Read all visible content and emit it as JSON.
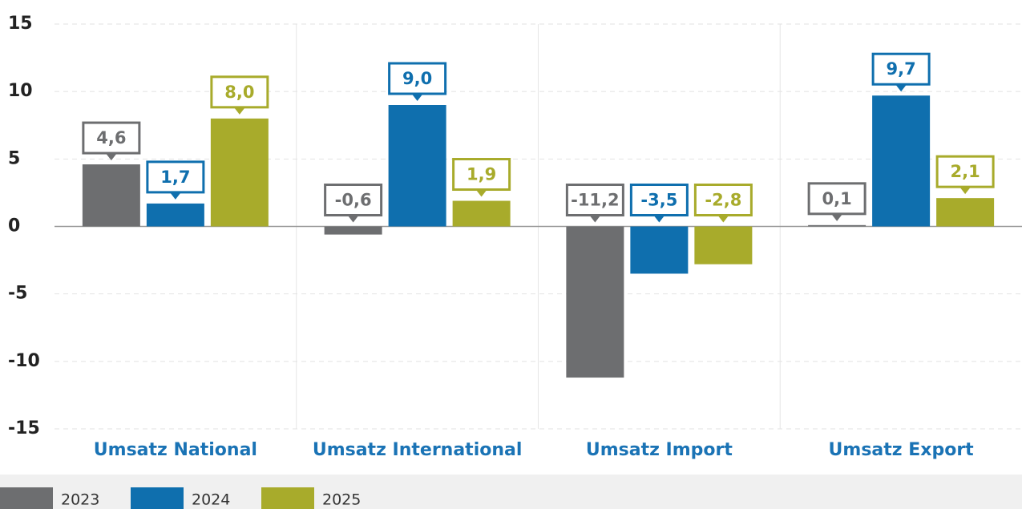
{
  "chart_data": {
    "type": "bar",
    "categories": [
      "Umsatz National",
      "Umsatz International",
      "Umsatz Import",
      "Umsatz Export"
    ],
    "series": [
      {
        "name": "2023",
        "color": "#6d6e70",
        "values": [
          4.6,
          -0.6,
          -11.2,
          0.1
        ],
        "value_labels": [
          "4,6",
          "-0,6",
          "-11,2",
          "0,1"
        ]
      },
      {
        "name": "2024",
        "color": "#0f6fae",
        "values": [
          1.7,
          9.0,
          -3.5,
          9.7
        ],
        "value_labels": [
          "1,7",
          "9,0",
          "-3,5",
          "9,7"
        ]
      },
      {
        "name": "2025",
        "color": "#a8ab2b",
        "values": [
          8.0,
          1.9,
          -2.8,
          2.1
        ],
        "value_labels": [
          "8,0",
          "1,9",
          "-2,8",
          "2,1"
        ]
      }
    ],
    "ylim": [
      -15,
      15
    ],
    "yticks": [
      -15,
      -10,
      -5,
      0,
      5,
      10,
      15
    ],
    "grid": true
  }
}
